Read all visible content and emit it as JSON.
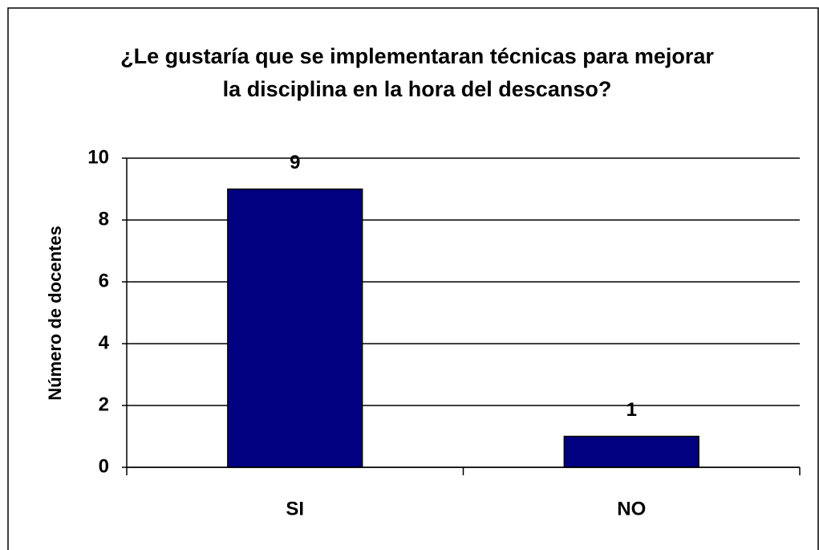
{
  "chart_data": {
    "type": "bar",
    "title": "¿Le gustaría que se implementaran técnicas para mejorar la disciplina en la hora del descanso?",
    "y_label": "Número de docentes",
    "categories": [
      "SI",
      "NO"
    ],
    "values": [
      9,
      1
    ],
    "color": "#000080",
    "ylim": [
      0,
      10
    ],
    "yticks": [
      0,
      2,
      4,
      6,
      8,
      10
    ],
    "grid": true
  }
}
